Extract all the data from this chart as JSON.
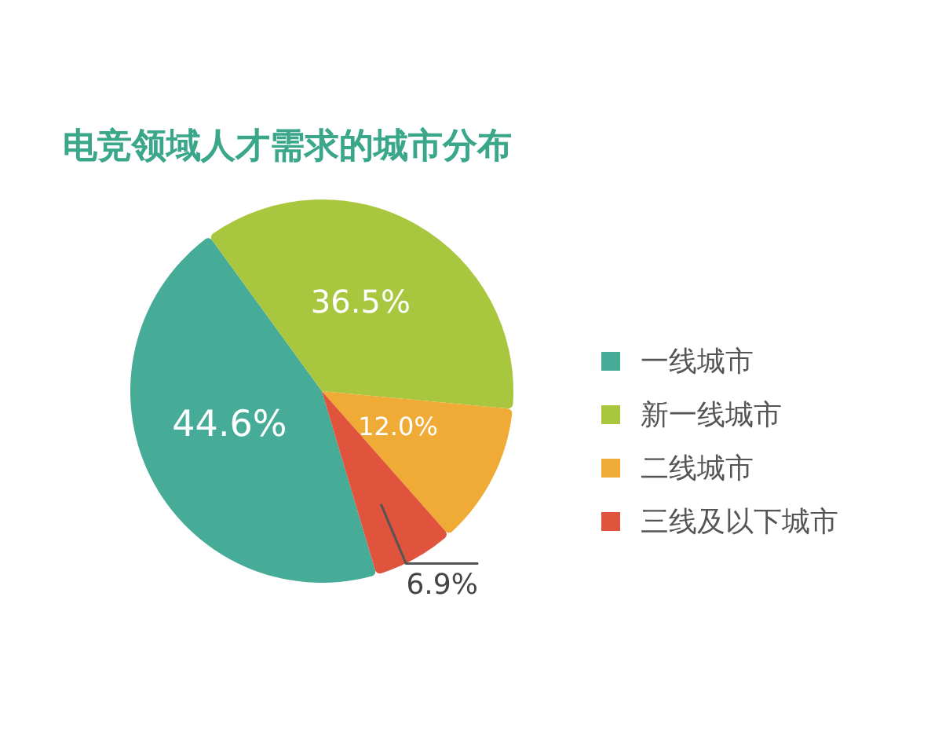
{
  "chart_data": {
    "type": "pie",
    "title": "电竞领域人才需求的城市分布",
    "categories": [
      "一线城市",
      "新一线城市",
      "二线城市",
      "三线及以下城市"
    ],
    "values": [
      44.6,
      36.5,
      12.0,
      6.9
    ],
    "colors": [
      "#46ab97",
      "#a8c63e",
      "#f0aa36",
      "#e0533c"
    ],
    "value_labels": [
      "44.6%",
      "36.5%",
      "12.0%",
      "6.9%"
    ],
    "legend": "right"
  }
}
